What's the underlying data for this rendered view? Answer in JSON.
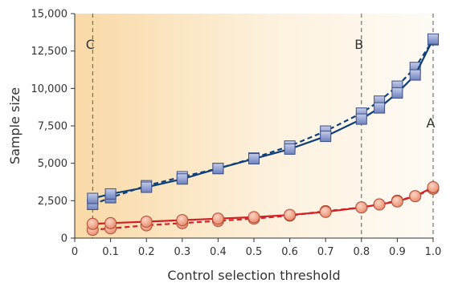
{
  "chart_data": {
    "type": "line",
    "xlabel": "Control selection threshold",
    "ylabel": "Sample size",
    "xlim": [
      0,
      1.0
    ],
    "ylim": [
      0,
      15000
    ],
    "x_ticks": [
      "0",
      "0.1",
      "0.2",
      "0.3",
      "0.4",
      "0.5",
      "0.6",
      "0.7",
      "0.8",
      "0.9",
      "1.0"
    ],
    "x_tick_values": [
      0,
      0.1,
      0.2,
      0.3,
      0.4,
      0.5,
      0.6,
      0.7,
      0.8,
      0.9,
      1.0
    ],
    "y_ticks": [
      "0",
      "2,500",
      "5,000",
      "7,500",
      "10,000",
      "12,500",
      "15,000"
    ],
    "y_tick_values": [
      0,
      2500,
      5000,
      7500,
      10000,
      12500,
      15000
    ],
    "annotations": [
      {
        "label": "C",
        "x": 0.05
      },
      {
        "label": "B",
        "x": 0.8
      },
      {
        "label": "A",
        "x": 1.0
      }
    ],
    "series": [
      {
        "marker": "square",
        "line": "solid",
        "color": "#0d3f7a",
        "fill": "#8fa2d2",
        "x": [
          0.05,
          0.1,
          0.2,
          0.3,
          0.4,
          0.5,
          0.6,
          0.7,
          0.8,
          0.85,
          0.9,
          0.95,
          1.0
        ],
        "y": [
          2650,
          2950,
          3400,
          3950,
          4650,
          5300,
          5950,
          6800,
          7950,
          8700,
          9700,
          10900,
          13300
        ]
      },
      {
        "marker": "square",
        "line": "dashed",
        "color": "#0d3f7a",
        "fill": "#8fa2d2",
        "x": [
          0.05,
          0.1,
          0.2,
          0.3,
          0.4,
          0.5,
          0.6,
          0.7,
          0.8,
          0.85,
          0.9,
          0.95,
          1.0
        ],
        "y": [
          2250,
          2700,
          3500,
          4100,
          4650,
          5350,
          6150,
          7150,
          8350,
          9150,
          10150,
          11400,
          13250
        ]
      },
      {
        "marker": "circle",
        "line": "solid",
        "color": "#d32026",
        "fill": "#f0a88e",
        "x": [
          0.05,
          0.1,
          0.2,
          0.3,
          0.4,
          0.5,
          0.6,
          0.7,
          0.8,
          0.85,
          0.9,
          0.95,
          1.0
        ],
        "y": [
          950,
          1000,
          1100,
          1200,
          1300,
          1400,
          1550,
          1750,
          2050,
          2250,
          2450,
          2800,
          3400
        ]
      },
      {
        "marker": "circle",
        "line": "dashed",
        "color": "#d32026",
        "fill": "#f0a88e",
        "x": [
          0.05,
          0.1,
          0.2,
          0.3,
          0.4,
          0.5,
          0.6,
          0.7,
          0.8,
          0.85,
          0.9,
          0.95,
          1.0
        ],
        "y": [
          550,
          650,
          850,
          1000,
          1150,
          1300,
          1500,
          1800,
          2050,
          2250,
          2500,
          2800,
          3300
        ]
      }
    ]
  }
}
